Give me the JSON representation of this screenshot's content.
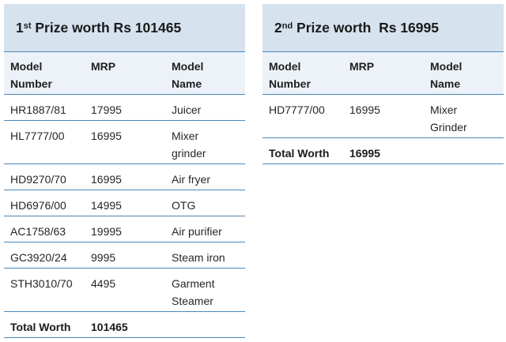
{
  "prize1": {
    "title_prefix": "1",
    "title_sup": "st",
    "title_rest": " Prize worth Rs 101465",
    "columns": [
      "Model\nNumber",
      "MRP",
      "Model\nName"
    ],
    "rows": [
      {
        "model_number": "HR1887/81",
        "mrp": "17995",
        "model_name": "Juicer"
      },
      {
        "model_number": "HL7777/00",
        "mrp": "16995",
        "model_name": "Mixer\ngrinder"
      },
      {
        "model_number": "HD9270/70",
        "mrp": "16995",
        "model_name": "Air fryer"
      },
      {
        "model_number": "HD6976/00",
        "mrp": "14995",
        "model_name": "OTG"
      },
      {
        "model_number": "AC1758/63",
        "mrp": "19995",
        "model_name": "Air purifier"
      },
      {
        "model_number": "GC3920/24",
        "mrp": "9995",
        "model_name": "Steam iron"
      },
      {
        "model_number": "STH3010/70",
        "mrp": "4495",
        "model_name": "Garment\nSteamer"
      }
    ],
    "total_label": "Total Worth",
    "total_value": "101465"
  },
  "prize2": {
    "title_prefix": "2",
    "title_sup": "nd",
    "title_rest": " Prize worth  Rs 16995",
    "columns": [
      "Model\nNumber",
      "MRP",
      "Model\nName"
    ],
    "rows": [
      {
        "model_number": "HD7777/00",
        "mrp": "16995",
        "model_name": "Mixer\nGrinder"
      }
    ],
    "total_label": "Total Worth",
    "total_value": "16995"
  }
}
